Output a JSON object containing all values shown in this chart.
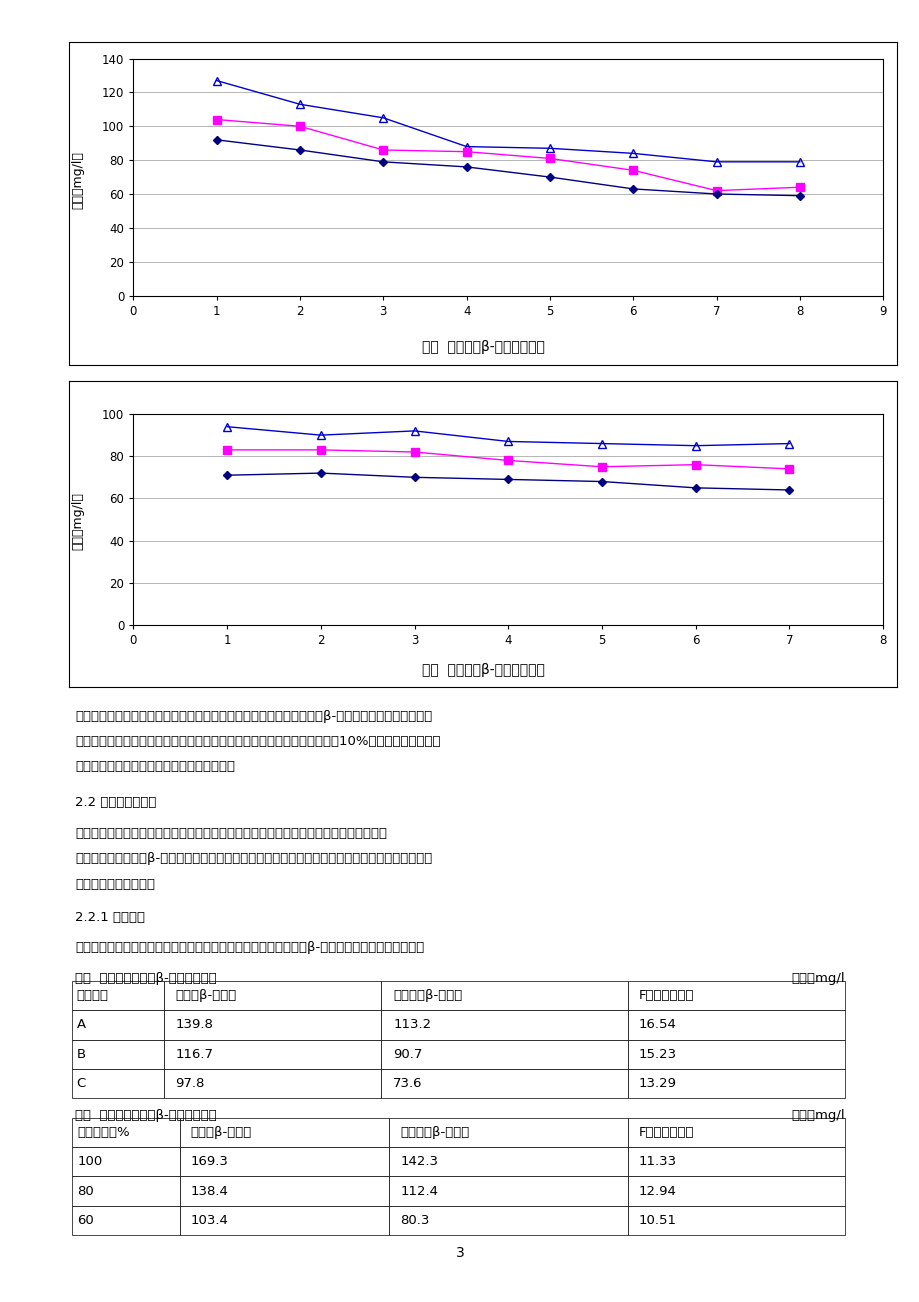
{
  "chart1": {
    "title": "图一  酿造过程β-葡聚糖的变化",
    "xlabel_ticks": [
      0,
      1,
      2,
      3,
      4,
      5,
      6,
      7,
      8,
      9
    ],
    "ylabel": "含量（mg/l）",
    "ylim": [
      0,
      140
    ],
    "yticks": [
      0,
      20,
      40,
      60,
      80,
      100,
      120,
      140
    ],
    "xlim": [
      0,
      9
    ],
    "series": [
      {
        "x": [
          1,
          2,
          3,
          4,
          5,
          6,
          7,
          8
        ],
        "y": [
          127,
          113,
          105,
          88,
          87,
          84,
          79,
          79
        ],
        "color": "#0000CD",
        "marker": "^",
        "markerface": "none",
        "markersize": 6
      },
      {
        "x": [
          1,
          2,
          3,
          4,
          5,
          6,
          7,
          8
        ],
        "y": [
          104,
          100,
          86,
          85,
          81,
          74,
          62,
          64
        ],
        "color": "#FF00FF",
        "marker": "s",
        "markerface": "#FF00FF",
        "markersize": 6
      },
      {
        "x": [
          1,
          2,
          3,
          4,
          5,
          6,
          7,
          8
        ],
        "y": [
          92,
          86,
          79,
          76,
          70,
          63,
          60,
          59
        ],
        "color": "#000080",
        "marker": "D",
        "markerface": "#000080",
        "markersize": 4
      }
    ]
  },
  "chart2": {
    "title": "图二  发酵过程β-葡聚糖的变化",
    "xlabel_ticks": [
      0,
      1,
      2,
      3,
      4,
      5,
      6,
      7,
      8
    ],
    "ylabel": "含量（mg/l）",
    "ylim": [
      0,
      100
    ],
    "yticks": [
      0,
      20,
      40,
      60,
      80,
      100
    ],
    "xlim": [
      0,
      8
    ],
    "series": [
      {
        "x": [
          1,
          2,
          3,
          4,
          5,
          6,
          7
        ],
        "y": [
          94,
          90,
          92,
          87,
          86,
          85,
          86
        ],
        "color": "#0000CD",
        "marker": "^",
        "markerface": "none",
        "markersize": 6
      },
      {
        "x": [
          1,
          2,
          3,
          4,
          5,
          6,
          7
        ],
        "y": [
          83,
          83,
          82,
          78,
          75,
          76,
          74
        ],
        "color": "#FF00FF",
        "marker": "s",
        "markerface": "#FF00FF",
        "markersize": 6
      },
      {
        "x": [
          1,
          2,
          3,
          4,
          5,
          6,
          7
        ],
        "y": [
          71,
          72,
          70,
          69,
          68,
          65,
          64
        ],
        "color": "#000080",
        "marker": "D",
        "markerface": "#000080",
        "markersize": 4
      }
    ]
  },
  "text_blocks": [
    "通过上表一、二及相应的图一、二分析可见，在整个啊酒酿造过程中，β-葡聚糖的含量逐而下降，其",
    "中在麦汁过滤槽和煮永终了、后发酵和清酒之间变化的幅度较大，平均达到10%，整个后发酵过程较",
    "为平稳；不同品种的变化幅度也大致成比例。",
    "2.2 因素差异性分析",
    "在差异性分析中，主要是利用方差分析鉴别多个因素对结果影响的程度，具体的描述略。",
    "影响啊酒酿造过程中β-葡聚糖的因素有很多，主要的还是麦芒的品种和质量，其次才是工艺参数，下",
    "将通过实验给予说明。",
    "2.2.1 麦芒因素",
    "考察不同品种麦芒和不同麦芒比例，在其他条件相一致的情况，对β-葡聚糖的含量进行分析比较。"
  ],
  "table3_title": "表三  不同品种麦芒对β-葡聚糖的影响",
  "table3_unit": "单位：mg/l",
  "table3_headers": [
    "麦芒品种",
    "麦汁中β-葡聚糖",
    "成品酒中β-葡聚糖",
    "F値（差异性）"
  ],
  "table3_rows": [
    [
      "A",
      "139.8",
      "113.2",
      "16.54"
    ],
    [
      "B",
      "116.7",
      "90.7",
      "15.23"
    ],
    [
      "C",
      "97.8",
      "73.6",
      "13.29"
    ]
  ],
  "table4_title": "表四  不同麦芒比例对β-葡聚糖的影响",
  "table4_unit": "单位：mg/l",
  "table4_headers": [
    "麦芒量比例%",
    "麦汁中β-葡聚糖",
    "成品酒中β-葡聚糖",
    "F値（差异性）"
  ],
  "table4_rows": [
    [
      "100",
      "169.3",
      "142.3",
      "11.33"
    ],
    [
      "80",
      "138.4",
      "112.4",
      "12.94"
    ],
    [
      "60",
      "103.4",
      "80.3",
      "10.51"
    ]
  ],
  "page_number": "3",
  "bg": "#FFFFFF",
  "black": "#000000",
  "grid_color": "#999999"
}
